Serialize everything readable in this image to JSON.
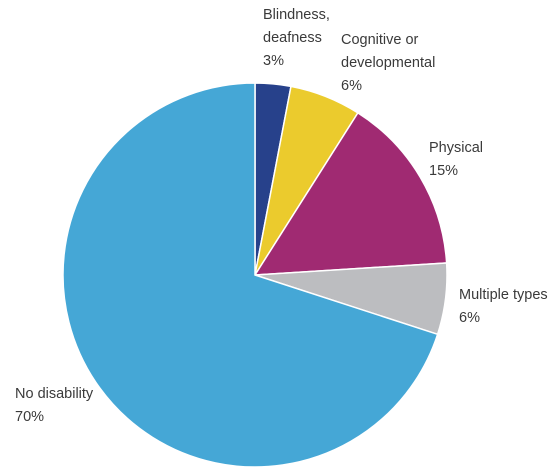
{
  "chart_data": {
    "type": "pie",
    "title": "",
    "slices": [
      {
        "label": "Blindness, deafness",
        "label_lines": [
          "Blindness,",
          "deafness"
        ],
        "value": 3,
        "value_text": "3%",
        "color": "#27418b"
      },
      {
        "label": "Cognitive or developmental",
        "label_lines": [
          "Cognitive or",
          "developmental"
        ],
        "value": 6,
        "value_text": "6%",
        "color": "#ebcb2d"
      },
      {
        "label": "Physical",
        "label_lines": [
          "Physical"
        ],
        "value": 15,
        "value_text": "15%",
        "color": "#a02a72"
      },
      {
        "label": "Multiple types",
        "label_lines": [
          "Multiple types"
        ],
        "value": 6,
        "value_text": "6%",
        "color": "#bcbdc0"
      },
      {
        "label": "No disability",
        "label_lines": [
          "No disability"
        ],
        "value": 70,
        "value_text": "70%",
        "color": "#45a7d6"
      }
    ]
  }
}
